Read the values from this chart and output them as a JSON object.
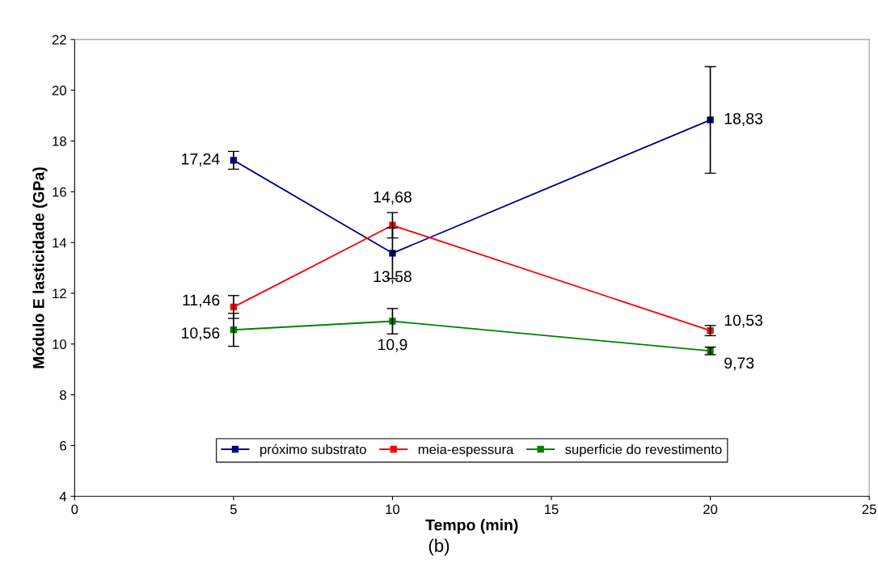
{
  "chart_data": {
    "type": "line",
    "x": [
      5,
      10,
      20
    ],
    "xlabel": "Tempo (min)",
    "ylabel": "Módulo E lasticidade (GPa)",
    "xlim": [
      0,
      25
    ],
    "xticks": [
      0,
      5,
      10,
      15,
      20,
      25
    ],
    "ylim": [
      4,
      22
    ],
    "yticks": [
      4,
      6,
      8,
      10,
      12,
      14,
      16,
      18,
      20,
      22
    ],
    "series": [
      {
        "name": "próximo substrato",
        "color": "#000080",
        "values": [
          17.24,
          13.58,
          18.83
        ],
        "errors": [
          0.35,
          1.0,
          2.1
        ],
        "value_labels": [
          "17,24",
          "13,58",
          "18,83"
        ]
      },
      {
        "name": "meia-espessura",
        "color": "#ff0000",
        "values": [
          11.46,
          14.68,
          10.53
        ],
        "errors": [
          0.45,
          0.5,
          0.2
        ],
        "value_labels": [
          "11,46",
          "14,68",
          "10,53"
        ]
      },
      {
        "name": "superficie do revestimento",
        "color": "#008000",
        "values": [
          10.56,
          10.9,
          9.73
        ],
        "errors": [
          0.65,
          0.5,
          0.15
        ],
        "value_labels": [
          "10,56",
          "10,9",
          "9,73"
        ]
      }
    ],
    "marker": "square",
    "line_style": "solid",
    "grid": false,
    "legend": "bottom",
    "annotations": [
      "(b)"
    ]
  }
}
